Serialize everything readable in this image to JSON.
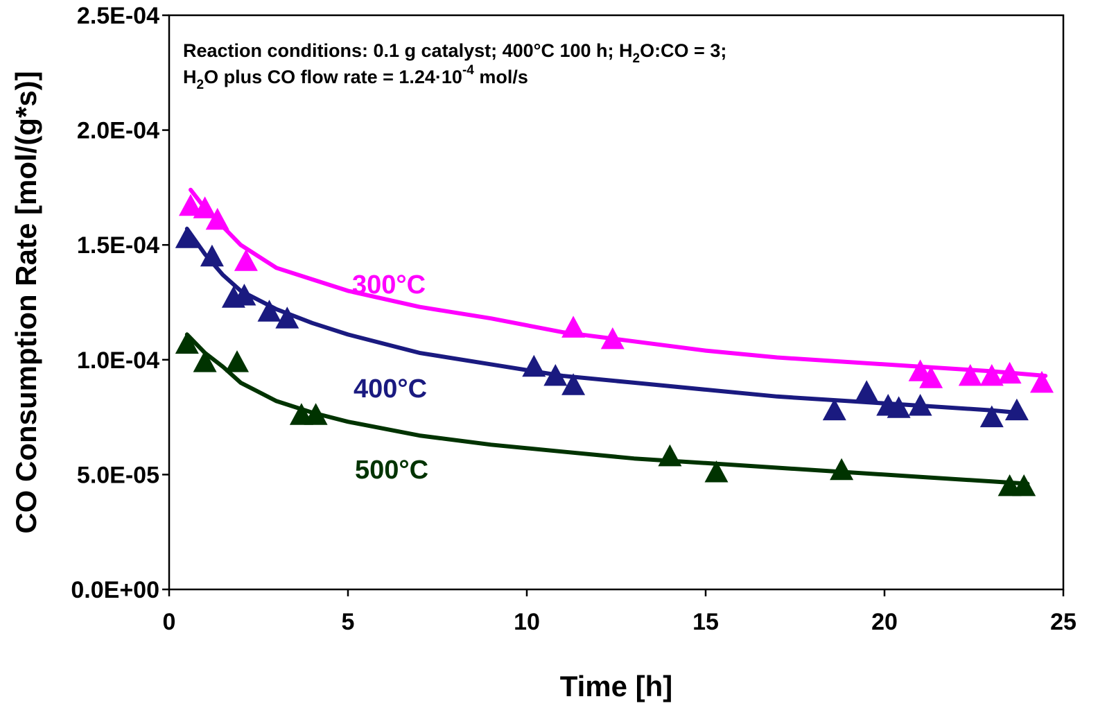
{
  "chart_data": {
    "type": "scatter",
    "xlabel": "Time  [h]",
    "ylabel": "CO Consumption Rate [mol/(g*s)]",
    "xlim": [
      0,
      25
    ],
    "ylim": [
      0,
      0.00025
    ],
    "x_ticks": [
      "0",
      "5",
      "10",
      "15",
      "20",
      "25"
    ],
    "y_ticks": [
      "0.0E+00",
      "5.0E-05",
      "1.0E-04",
      "1.5E-04",
      "2.0E-04",
      "2.5E-04"
    ],
    "grid": false,
    "annotation": {
      "line1": {
        "a": "Reaction conditions:  0.1 g catalyst; 400°C 100 h; H",
        "sub": "2",
        "b": "O:CO = 3;"
      },
      "line2": {
        "a": "H",
        "sub": "2",
        "b": "O plus CO flow rate = 1.24·10",
        "sup": "-4",
        "c": " mol/s"
      }
    },
    "series": [
      {
        "name": "300°C",
        "color": "#FF00FF",
        "marker": "triangle",
        "points": [
          [
            0.6,
            0.000167
          ],
          [
            1.0,
            0.000166
          ],
          [
            1.35,
            0.000161
          ],
          [
            2.15,
            0.000143
          ],
          [
            11.3,
            0.000114
          ],
          [
            12.4,
            0.000109
          ],
          [
            21.0,
            9.5e-05
          ],
          [
            21.3,
            9.2e-05
          ],
          [
            22.4,
            9.3e-05
          ],
          [
            23.0,
            9.3e-05
          ],
          [
            23.5,
            9.4e-05
          ],
          [
            24.4,
            9e-05
          ]
        ],
        "curve": [
          [
            0.6,
            0.000174
          ],
          [
            1.0,
            0.000166
          ],
          [
            1.5,
            0.000158
          ],
          [
            2.0,
            0.00015
          ],
          [
            3.0,
            0.00014
          ],
          [
            4.0,
            0.000135
          ],
          [
            5.0,
            0.00013
          ],
          [
            7.0,
            0.000123
          ],
          [
            9.0,
            0.000118
          ],
          [
            11.0,
            0.000112
          ],
          [
            13.0,
            0.000108
          ],
          [
            15.0,
            0.000104
          ],
          [
            17.0,
            0.000101
          ],
          [
            19.0,
            9.9e-05
          ],
          [
            21.0,
            9.7e-05
          ],
          [
            23.0,
            9.5e-05
          ],
          [
            24.5,
            9.3e-05
          ]
        ]
      },
      {
        "name": "400°C",
        "color": "#1A1A80",
        "marker": "triangle",
        "points": [
          [
            0.5,
            0.000153
          ],
          [
            1.2,
            0.000145
          ],
          [
            1.8,
            0.000127
          ],
          [
            2.1,
            0.000128
          ],
          [
            2.8,
            0.000121
          ],
          [
            3.3,
            0.000118
          ],
          [
            10.2,
            9.7e-05
          ],
          [
            10.8,
            9.3e-05
          ],
          [
            11.3,
            8.9e-05
          ],
          [
            18.6,
            7.8e-05
          ],
          [
            19.5,
            8.6e-05
          ],
          [
            20.1,
            8e-05
          ],
          [
            20.4,
            7.9e-05
          ],
          [
            21.0,
            8e-05
          ],
          [
            23.0,
            7.5e-05
          ],
          [
            23.7,
            7.8e-05
          ]
        ],
        "curve": [
          [
            0.5,
            0.000157
          ],
          [
            1.0,
            0.000146
          ],
          [
            1.5,
            0.000137
          ],
          [
            2.0,
            0.00013
          ],
          [
            3.0,
            0.000122
          ],
          [
            4.0,
            0.000116
          ],
          [
            5.0,
            0.000111
          ],
          [
            7.0,
            0.000103
          ],
          [
            9.0,
            9.8e-05
          ],
          [
            11.0,
            9.3e-05
          ],
          [
            13.0,
            9e-05
          ],
          [
            15.0,
            8.7e-05
          ],
          [
            17.0,
            8.4e-05
          ],
          [
            19.0,
            8.2e-05
          ],
          [
            21.0,
            8e-05
          ],
          [
            23.0,
            7.8e-05
          ],
          [
            23.7,
            7.7e-05
          ]
        ]
      },
      {
        "name": "500°C",
        "color": "#003300",
        "marker": "triangle",
        "points": [
          [
            0.5,
            0.000107
          ],
          [
            1.0,
            9.9e-05
          ],
          [
            1.9,
            9.9e-05
          ],
          [
            3.7,
            7.6e-05
          ],
          [
            4.1,
            7.6e-05
          ],
          [
            14.0,
            5.8e-05
          ],
          [
            15.3,
            5.1e-05
          ],
          [
            18.8,
            5.2e-05
          ],
          [
            23.5,
            4.5e-05
          ],
          [
            23.9,
            4.5e-05
          ]
        ],
        "curve": [
          [
            0.5,
            0.000111
          ],
          [
            1.0,
            0.000103
          ],
          [
            1.5,
            9.7e-05
          ],
          [
            2.0,
            9e-05
          ],
          [
            3.0,
            8.2e-05
          ],
          [
            4.0,
            7.7e-05
          ],
          [
            5.0,
            7.3e-05
          ],
          [
            7.0,
            6.7e-05
          ],
          [
            9.0,
            6.3e-05
          ],
          [
            11.0,
            6e-05
          ],
          [
            13.0,
            5.7e-05
          ],
          [
            15.0,
            5.5e-05
          ],
          [
            17.0,
            5.3e-05
          ],
          [
            19.0,
            5.1e-05
          ],
          [
            21.0,
            4.9e-05
          ],
          [
            23.0,
            4.7e-05
          ],
          [
            24.0,
            4.6e-05
          ]
        ]
      }
    ]
  }
}
